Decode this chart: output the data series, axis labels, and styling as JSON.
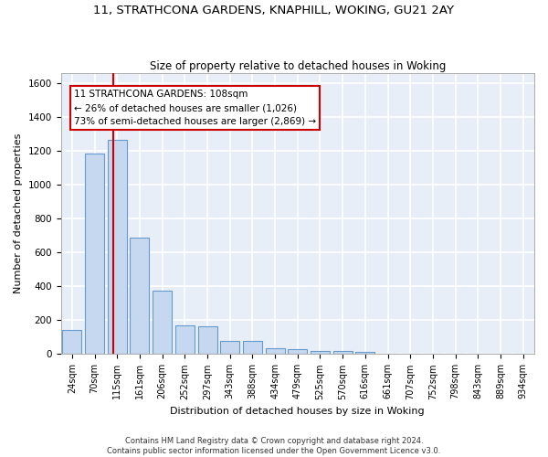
{
  "title": "11, STRATHCONA GARDENS, KNAPHILL, WOKING, GU21 2AY",
  "subtitle": "Size of property relative to detached houses in Woking",
  "xlabel": "Distribution of detached houses by size in Woking",
  "ylabel": "Number of detached properties",
  "footer_line1": "Contains HM Land Registry data © Crown copyright and database right 2024.",
  "footer_line2": "Contains public sector information licensed under the Open Government Licence v3.0.",
  "bar_labels": [
    "24sqm",
    "70sqm",
    "115sqm",
    "161sqm",
    "206sqm",
    "252sqm",
    "297sqm",
    "343sqm",
    "388sqm",
    "434sqm",
    "479sqm",
    "525sqm",
    "570sqm",
    "616sqm",
    "661sqm",
    "707sqm",
    "752sqm",
    "798sqm",
    "843sqm",
    "889sqm",
    "934sqm"
  ],
  "bar_values": [
    145,
    1185,
    1265,
    690,
    375,
    170,
    165,
    80,
    78,
    35,
    32,
    20,
    20,
    12,
    0,
    0,
    0,
    0,
    0,
    0,
    0
  ],
  "bar_color": "#c5d8ef",
  "bar_edge_color": "#6699cc",
  "annotation_line1": "11 STRATHCONA GARDENS: 108sqm",
  "annotation_line2": "← 26% of detached houses are smaller (1,026)",
  "annotation_line3": "73% of semi-detached houses are larger (2,869) →",
  "vline_x": 1.82,
  "vline_color": "#cc0000",
  "ylim": [
    0,
    1660
  ],
  "yticks": [
    0,
    200,
    400,
    600,
    800,
    1000,
    1200,
    1400,
    1600
  ],
  "bg_color": "#e8eef8",
  "grid_color": "#ffffff",
  "title_fontsize": 9.5,
  "subtitle_fontsize": 8.5,
  "axis_label_fontsize": 8,
  "tick_fontsize": 7,
  "annotation_fontsize": 7.5,
  "footer_fontsize": 6
}
